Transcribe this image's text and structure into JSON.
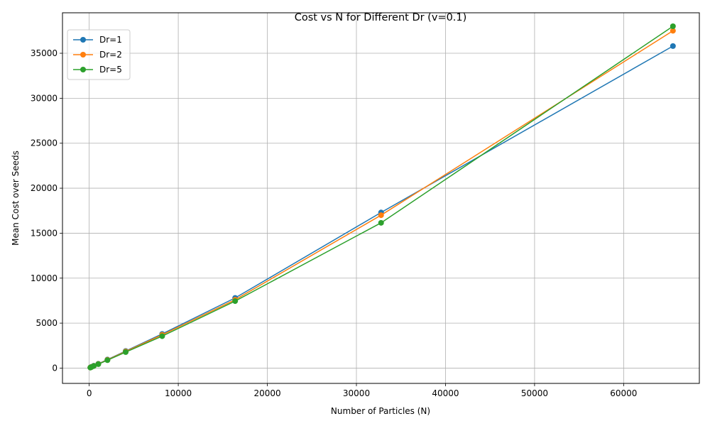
{
  "chart_data": {
    "type": "line",
    "title": "Cost vs N for Different Dr (v=0.1)",
    "xlabel": "Number of Particles (N)",
    "ylabel": "Mean Cost over Seeds",
    "xlim": [
      -3000,
      68500
    ],
    "ylim": [
      -1700,
      39500
    ],
    "xticks": [
      0,
      10000,
      20000,
      30000,
      40000,
      50000,
      60000
    ],
    "yticks": [
      0,
      5000,
      10000,
      15000,
      20000,
      25000,
      30000,
      35000
    ],
    "grid": true,
    "legend_position": "top-left",
    "x": [
      128,
      256,
      512,
      1024,
      2048,
      4096,
      8192,
      16384,
      32768,
      65536
    ],
    "series": [
      {
        "name": "Dr=1",
        "color": "#1f77b4",
        "values": [
          70,
          140,
          260,
          480,
          950,
          1900,
          3800,
          7800,
          17300,
          35800
        ]
      },
      {
        "name": "Dr=2",
        "color": "#ff7f0e",
        "values": [
          65,
          130,
          240,
          460,
          920,
          1850,
          3700,
          7600,
          17000,
          37500
        ]
      },
      {
        "name": "Dr=5",
        "color": "#2ca02c",
        "values": [
          60,
          120,
          230,
          440,
          880,
          1780,
          3550,
          7450,
          16150,
          38000
        ]
      }
    ]
  }
}
